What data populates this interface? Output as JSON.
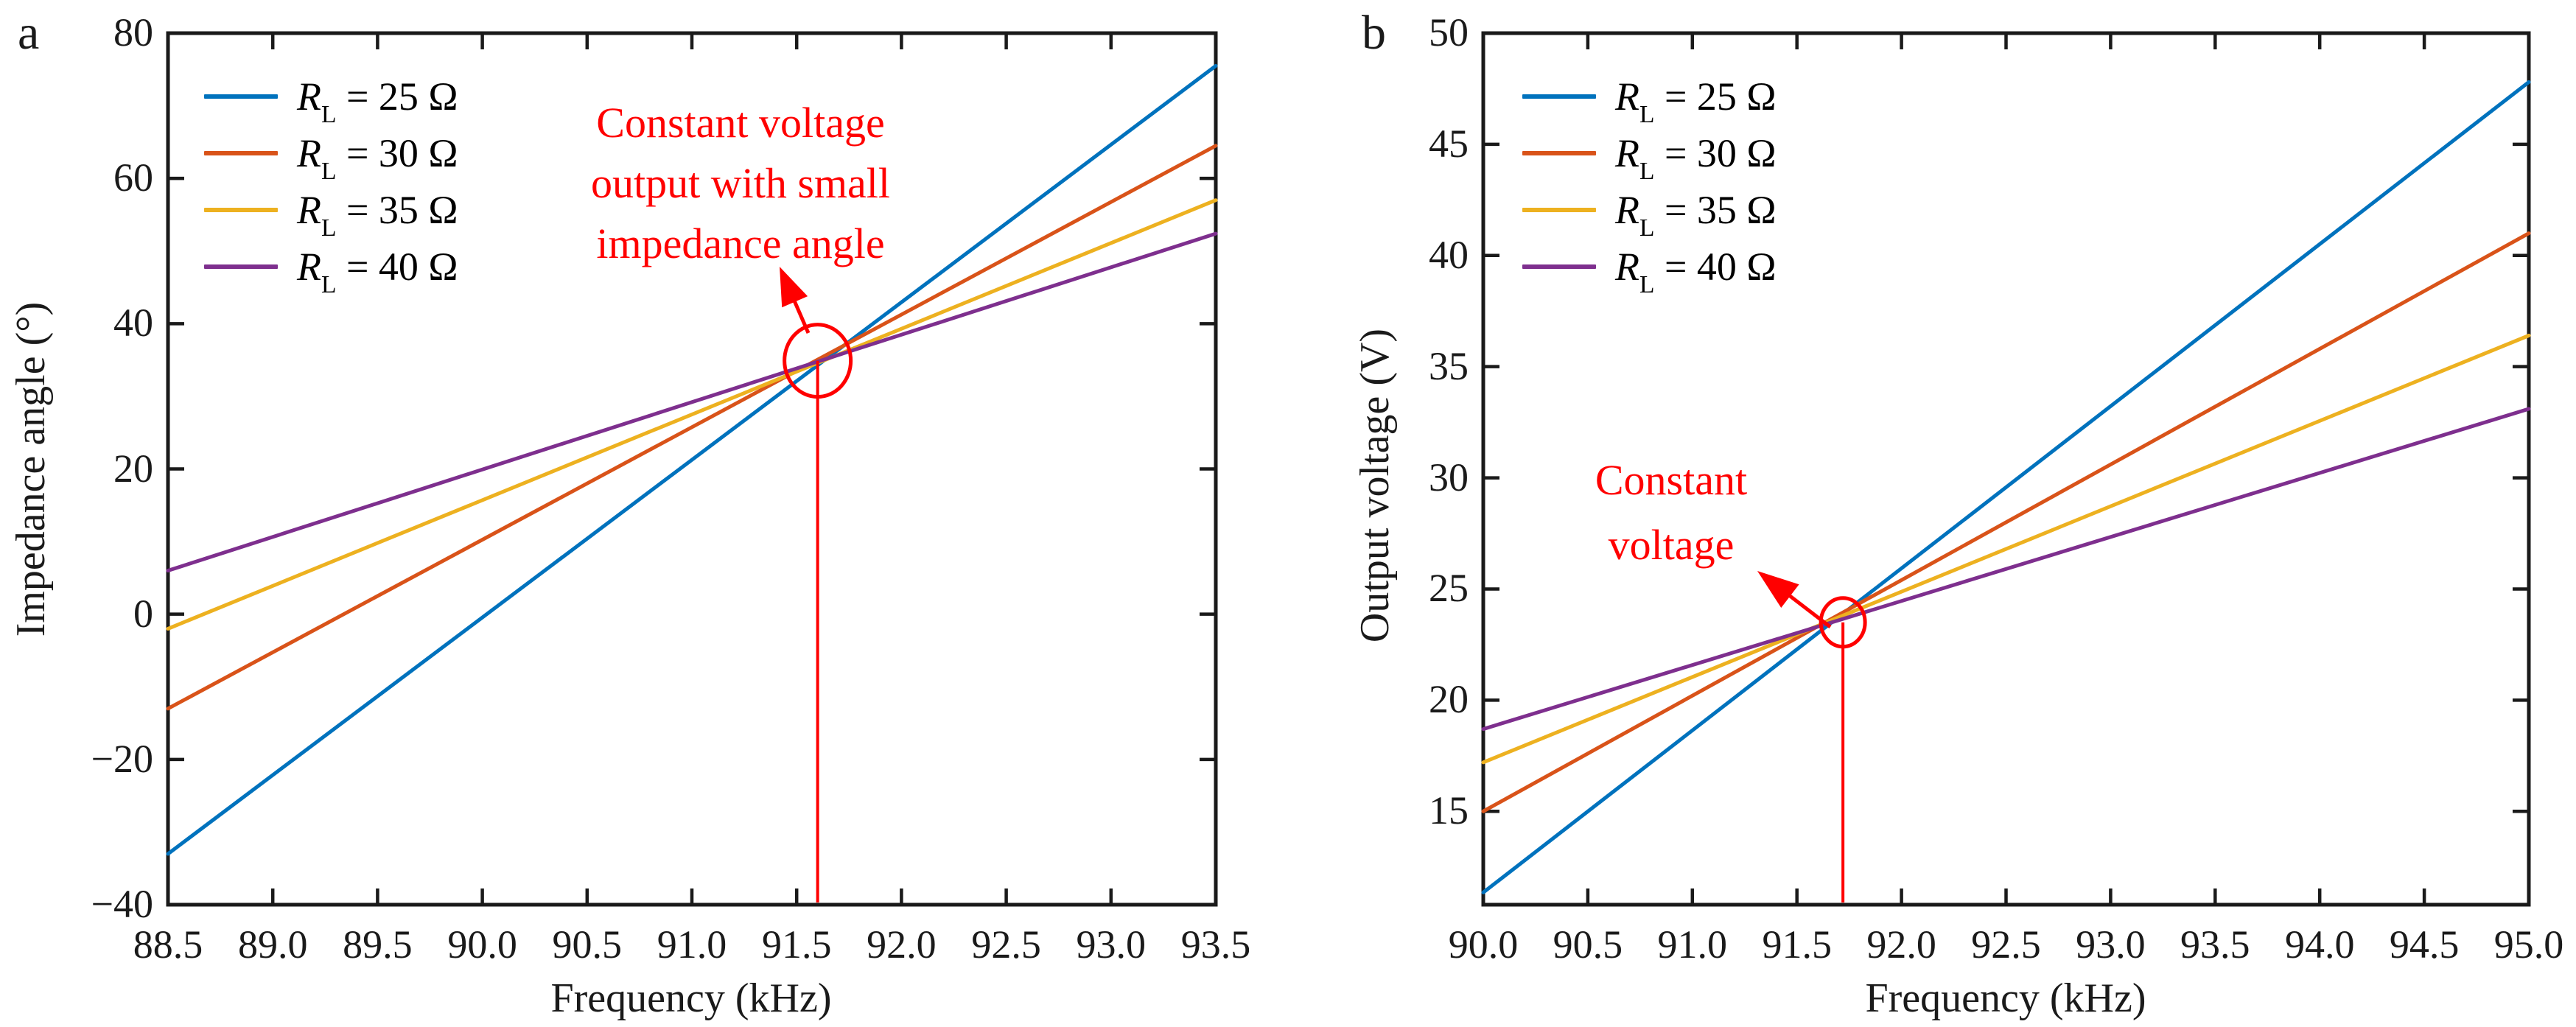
{
  "figure": {
    "background": "#ffffff",
    "annotation_color": "#FF0000",
    "axis_color": "#1a1a1a"
  },
  "chart_data": [
    {
      "panel_label": "a",
      "type": "line",
      "title": "",
      "xlabel": "Frequency (kHz)",
      "ylabel": "Impedance angle (°)",
      "xlim": [
        88.5,
        93.5
      ],
      "ylim": [
        -40,
        80
      ],
      "grid": false,
      "legend_position": "top-left",
      "xtick_values": [
        88.5,
        89.0,
        89.5,
        90.0,
        90.5,
        91.0,
        91.5,
        92.0,
        92.5,
        93.0,
        93.5
      ],
      "xtick_labels": [
        "88.5",
        "89.0",
        "89.5",
        "90.0",
        "90.5",
        "91.0",
        "91.5",
        "92.0",
        "92.5",
        "93.0",
        "93.5"
      ],
      "ytick_values": [
        80,
        60,
        40,
        20,
        0,
        -20,
        -40
      ],
      "ytick_labels": [
        "80",
        "60",
        "40",
        "20",
        "0",
        "−20",
        "−40"
      ],
      "series": [
        {
          "name": "RL = 25 Ω",
          "color": "#0072BD",
          "x": [
            88.5,
            93.5
          ],
          "y": [
            -33.0,
            75.5
          ]
        },
        {
          "name": "RL = 30 Ω",
          "color": "#D95319",
          "x": [
            88.5,
            93.5
          ],
          "y": [
            -13.0,
            64.5
          ]
        },
        {
          "name": "RL = 35 Ω",
          "color": "#EDB120",
          "x": [
            88.5,
            93.5
          ],
          "y": [
            -2.0,
            57.0
          ]
        },
        {
          "name": "RL = 40 Ω",
          "color": "#7E2F8E",
          "x": [
            88.5,
            93.5
          ],
          "y": [
            6.0,
            52.4
          ]
        }
      ],
      "legend": [
        {
          "symbol": "R",
          "subscript": "L",
          "rest": " = 25 Ω",
          "color": "#0072BD"
        },
        {
          "symbol": "R",
          "subscript": "L",
          "rest": " = 30 Ω",
          "color": "#D95319"
        },
        {
          "symbol": "R",
          "subscript": "L",
          "rest": " = 35 Ω",
          "color": "#EDB120"
        },
        {
          "symbol": "R",
          "subscript": "L",
          "rest": " = 40 Ω",
          "color": "#7E2F8E"
        }
      ],
      "annotation": {
        "lines": [
          "Constant voltage",
          "output with small",
          "impedance angle"
        ],
        "color": "#FF0000",
        "target": {
          "x": 91.6,
          "y": 34.9
        },
        "marker": "circle-with-vline-to-axis"
      }
    },
    {
      "panel_label": "b",
      "type": "line",
      "title": "",
      "xlabel": "Frequency (kHz)",
      "ylabel": "Output voltage (V)",
      "xlim": [
        90.0,
        95.0
      ],
      "ylim": [
        10.8,
        50
      ],
      "grid": false,
      "legend_position": "top-left",
      "xtick_values": [
        90.0,
        90.5,
        91.0,
        91.5,
        92.0,
        92.5,
        93.0,
        93.5,
        94.0,
        94.5,
        95.0
      ],
      "xtick_labels": [
        "90.0",
        "90.5",
        "91.0",
        "91.5",
        "92.0",
        "92.5",
        "93.0",
        "93.5",
        "94.0",
        "94.5",
        "95.0"
      ],
      "ytick_values": [
        50,
        45,
        40,
        35,
        30,
        25,
        20,
        15
      ],
      "ytick_labels": [
        "50",
        "45",
        "40",
        "35",
        "30",
        "25",
        "20",
        "15"
      ],
      "series": [
        {
          "name": "RL = 25 Ω",
          "color": "#0072BD",
          "x": [
            90.0,
            95.0
          ],
          "y": [
            11.35,
            47.8
          ]
        },
        {
          "name": "RL = 30 Ω",
          "color": "#D95319",
          "x": [
            90.0,
            95.0
          ],
          "y": [
            15.0,
            41.0
          ]
        },
        {
          "name": "RL = 35 Ω",
          "color": "#EDB120",
          "x": [
            90.0,
            95.0
          ],
          "y": [
            17.2,
            36.4
          ]
        },
        {
          "name": "RL = 40 Ω",
          "color": "#7E2F8E",
          "x": [
            90.0,
            95.0
          ],
          "y": [
            18.7,
            33.1
          ]
        }
      ],
      "legend": [
        {
          "symbol": "R",
          "subscript": "L",
          "rest": " = 25 Ω",
          "color": "#0072BD"
        },
        {
          "symbol": "R",
          "subscript": "L",
          "rest": " = 30 Ω",
          "color": "#D95319"
        },
        {
          "symbol": "R",
          "subscript": "L",
          "rest": " = 35 Ω",
          "color": "#EDB120"
        },
        {
          "symbol": "R",
          "subscript": "L",
          "rest": " = 40 Ω",
          "color": "#7E2F8E"
        }
      ],
      "annotation": {
        "lines": [
          "Constant",
          "voltage"
        ],
        "color": "#FF0000",
        "target": {
          "x": 91.72,
          "y": 23.5
        },
        "marker": "circle-with-vline-to-axis"
      }
    }
  ]
}
